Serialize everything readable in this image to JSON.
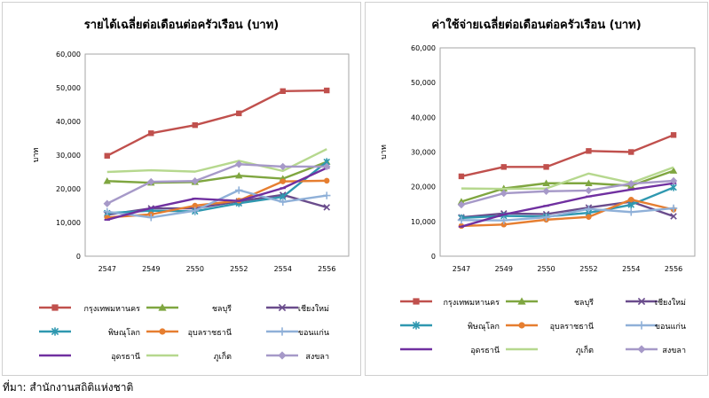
{
  "charts": [
    {
      "type": "line",
      "title": "รายได้เฉลี่ยต่อเดือนต่อครัวเรือน (บาท)",
      "ylabel": "บาท",
      "categories": [
        "2547",
        "2549",
        "2550",
        "2552",
        "2554",
        "2556"
      ],
      "ylim": [
        0,
        60000
      ],
      "yticks": [
        "0",
        "10,000",
        "20,000",
        "30,000",
        "40,000",
        "50,000",
        "60,000"
      ],
      "legend_position": "bottom",
      "series": [
        {
          "name": "กรุงเทพมหานคร",
          "color": "#c0504d",
          "marker": "square",
          "values": [
            29800,
            36500,
            38900,
            42400,
            49000,
            49200
          ]
        },
        {
          "name": "ชลบุรี",
          "color": "#7fa640",
          "marker": "triangle",
          "values": [
            22300,
            21800,
            22000,
            23900,
            23000,
            28000
          ]
        },
        {
          "name": "เชียงใหม่",
          "color": "#6a4c8c",
          "marker": "x",
          "values": [
            12300,
            14200,
            14200,
            16300,
            18200,
            14500
          ]
        },
        {
          "name": "พิษณุโลก",
          "color": "#2f98b0",
          "marker": "star",
          "values": [
            12800,
            13500,
            13300,
            15700,
            17600,
            28000
          ]
        },
        {
          "name": "อุบลราชธานี",
          "color": "#e67e30",
          "marker": "circle",
          "values": [
            11500,
            12400,
            15000,
            16500,
            22200,
            22400
          ]
        },
        {
          "name": "ขอนแก่น",
          "color": "#8fb0d8",
          "marker": "plus",
          "values": [
            13200,
            11500,
            13500,
            19600,
            16100,
            18000
          ]
        },
        {
          "name": "อุดรธานี",
          "color": "#7030a0",
          "marker": "dash",
          "values": [
            10800,
            14300,
            17100,
            16400,
            20200,
            26200
          ]
        },
        {
          "name": "ภูเก็ต",
          "color": "#b6d88e",
          "marker": "none",
          "values": [
            25000,
            25500,
            25100,
            28300,
            25300,
            31800
          ]
        },
        {
          "name": "สงขลา",
          "color": "#a699c8",
          "marker": "diamond",
          "values": [
            15600,
            22100,
            22300,
            27300,
            26600,
            26600
          ]
        }
      ]
    },
    {
      "type": "line",
      "title": "ค่าใช้จ่ายเฉลี่ยต่อเดือนต่อครัวเรือน (บาท)",
      "ylabel": "บาท",
      "categories": [
        "2547",
        "2549",
        "2550",
        "2552",
        "2554",
        "2556"
      ],
      "ylim": [
        0,
        60000
      ],
      "yticks": [
        "0",
        "10,000",
        "20,000",
        "30,000",
        "40,000",
        "50,000",
        "60,000"
      ],
      "legend_position": "bottom",
      "series": [
        {
          "name": "กรุงเทพมหานคร",
          "color": "#c0504d",
          "marker": "square",
          "values": [
            23000,
            25700,
            25700,
            30300,
            30000,
            34900
          ]
        },
        {
          "name": "ชลบุรี",
          "color": "#7fa640",
          "marker": "triangle",
          "values": [
            15700,
            19500,
            21000,
            21000,
            20300,
            24600
          ]
        },
        {
          "name": "เชียงใหม่",
          "color": "#6a4c8c",
          "marker": "x",
          "values": [
            11200,
            12300,
            12100,
            14000,
            15700,
            11500
          ]
        },
        {
          "name": "พิษณุโลก",
          "color": "#2f98b0",
          "marker": "star",
          "values": [
            11000,
            11600,
            11400,
            12500,
            14800,
            19800
          ]
        },
        {
          "name": "อุบลราชธานี",
          "color": "#e67e30",
          "marker": "circle",
          "values": [
            8700,
            9100,
            10500,
            11300,
            16300,
            13400
          ]
        },
        {
          "name": "ขอนแก่น",
          "color": "#8fb0d8",
          "marker": "plus",
          "values": [
            10400,
            10300,
            11200,
            13600,
            12700,
            13800
          ]
        },
        {
          "name": "อุดรธานี",
          "color": "#7030a0",
          "marker": "dash",
          "values": [
            8500,
            12000,
            14500,
            17200,
            19200,
            21000
          ]
        },
        {
          "name": "ภูเก็ต",
          "color": "#b6d88e",
          "marker": "none",
          "values": [
            19500,
            19400,
            19500,
            23800,
            21100,
            25600
          ]
        },
        {
          "name": "สงขลา",
          "color": "#a699c8",
          "marker": "diamond",
          "values": [
            14800,
            18100,
            18700,
            18900,
            20900,
            21700
          ]
        }
      ]
    }
  ],
  "footer": "ที่มา: สำนักงานสถิติแห่งชาติ"
}
